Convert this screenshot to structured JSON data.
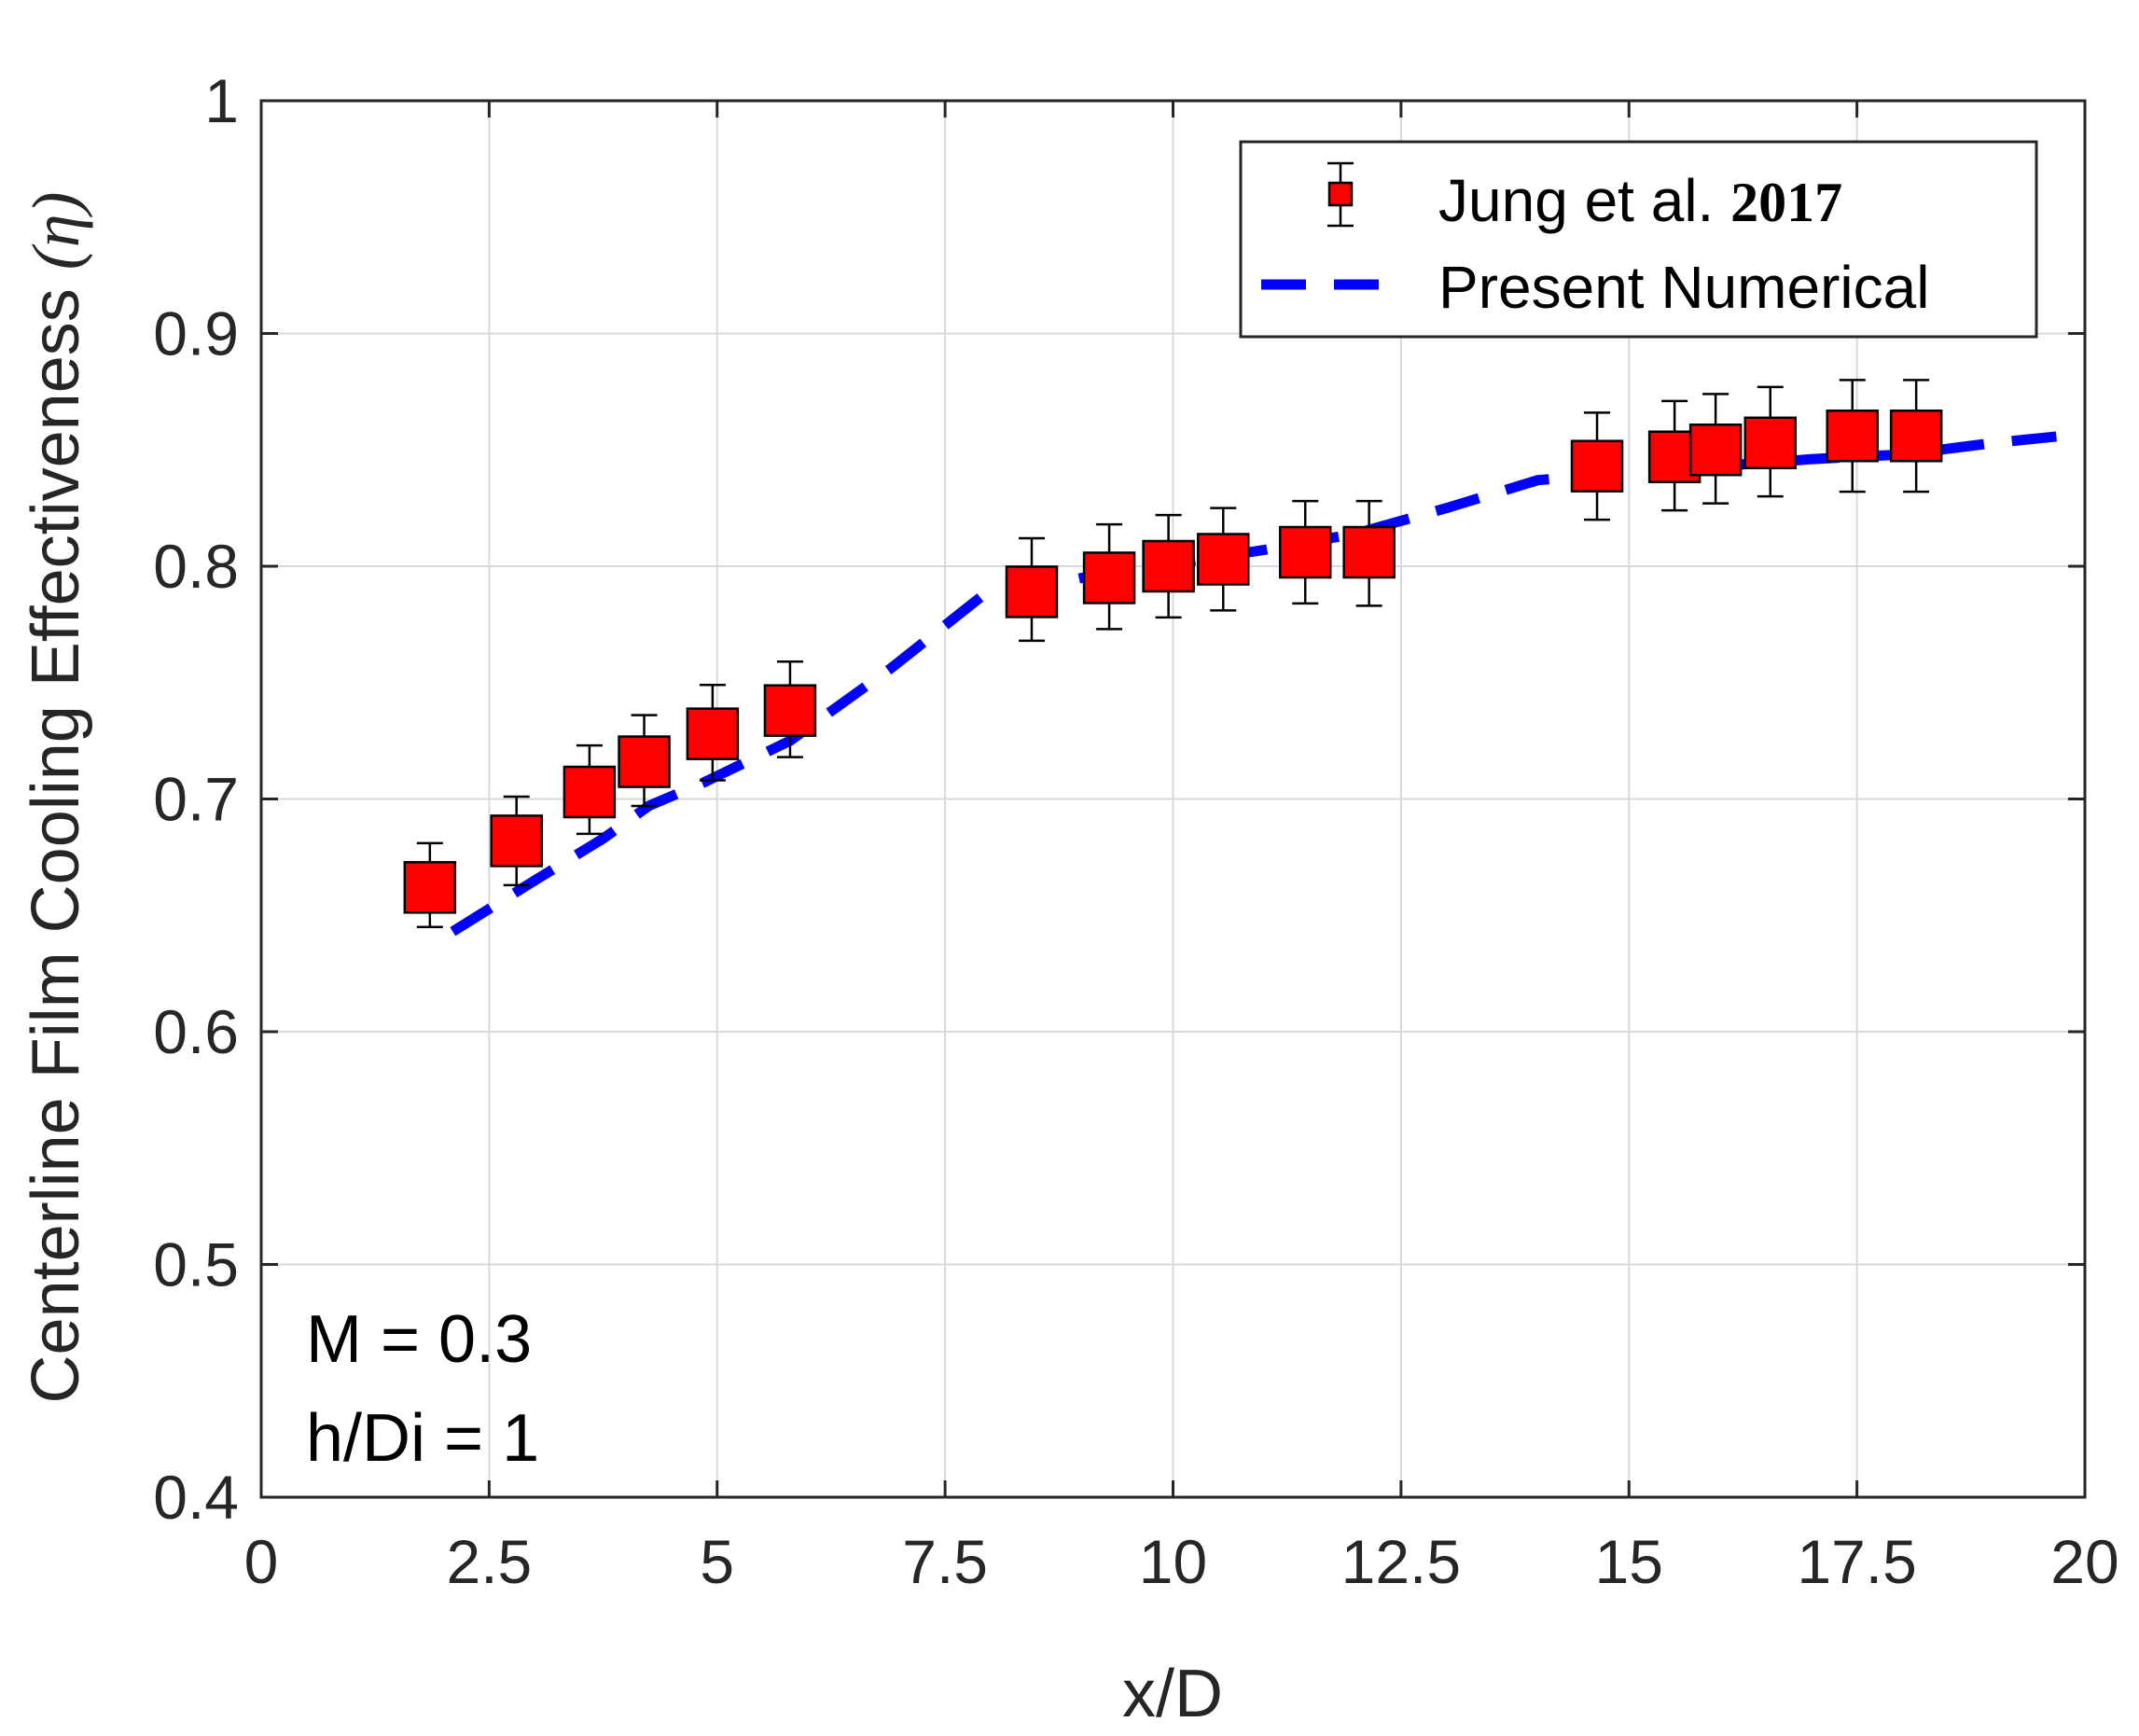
{
  "chart_data": {
    "type": "line",
    "title": "",
    "xlabel": "x/D",
    "ylabel": "Centerline Film Cooling Effectiveness",
    "ylabel_symbol": "(η)",
    "xlim": [
      0,
      20
    ],
    "ylim": [
      0.4,
      1
    ],
    "xticks": [
      0,
      2.5,
      5,
      7.5,
      10,
      12.5,
      15,
      17.5,
      20
    ],
    "xtick_labels": [
      "0",
      "2.5",
      "5",
      "7.5",
      "10",
      "12.5",
      "15",
      "17.5",
      "20"
    ],
    "yticks": [
      0.4,
      0.5,
      0.6,
      0.7,
      0.8,
      0.9,
      1
    ],
    "ytick_labels": [
      "0.4",
      "0.5",
      "0.6",
      "0.7",
      "0.8",
      "0.9",
      "1"
    ],
    "grid": true,
    "legend_position": "top-right",
    "series": [
      {
        "name": "Jung et al.",
        "name_year": "2017",
        "kind": "markers-with-errorbars",
        "color": "#ff0000",
        "x": [
          1.85,
          2.8,
          3.6,
          4.2,
          4.95,
          5.8,
          8.45,
          9.3,
          9.95,
          10.55,
          11.45,
          12.15,
          14.65,
          15.5,
          15.95,
          16.55,
          17.45,
          18.15
        ],
        "y": [
          0.662,
          0.682,
          0.703,
          0.716,
          0.728,
          0.738,
          0.789,
          0.795,
          0.8,
          0.803,
          0.806,
          0.806,
          0.843,
          0.847,
          0.85,
          0.853,
          0.856,
          0.856
        ],
        "err_low": [
          0.645,
          0.663,
          0.685,
          0.697,
          0.708,
          0.718,
          0.768,
          0.773,
          0.778,
          0.781,
          0.784,
          0.783,
          0.82,
          0.824,
          0.827,
          0.83,
          0.832,
          0.832
        ],
        "err_high": [
          0.681,
          0.701,
          0.723,
          0.736,
          0.749,
          0.759,
          0.812,
          0.818,
          0.822,
          0.825,
          0.828,
          0.828,
          0.866,
          0.871,
          0.874,
          0.877,
          0.88,
          0.88
        ]
      },
      {
        "name": "Present Numerical",
        "kind": "dashed-line",
        "color": "#0000ff",
        "x": [
          2.1,
          3.0,
          3.75,
          4.25,
          4.85,
          5.8,
          6.9,
          7.9,
          8.4,
          9.0,
          10.0,
          11.0,
          12.0,
          13.0,
          14.0,
          15.0,
          16.0,
          17.0,
          18.0,
          19.0,
          20.0
        ],
        "y": [
          0.643,
          0.665,
          0.683,
          0.697,
          0.707,
          0.725,
          0.756,
          0.787,
          0.79,
          0.795,
          0.801,
          0.807,
          0.814,
          0.825,
          0.837,
          0.84,
          0.843,
          0.846,
          0.848,
          0.853,
          0.857
        ]
      }
    ],
    "annotations": [
      "M = 0.3",
      "h/Di = 1"
    ]
  }
}
